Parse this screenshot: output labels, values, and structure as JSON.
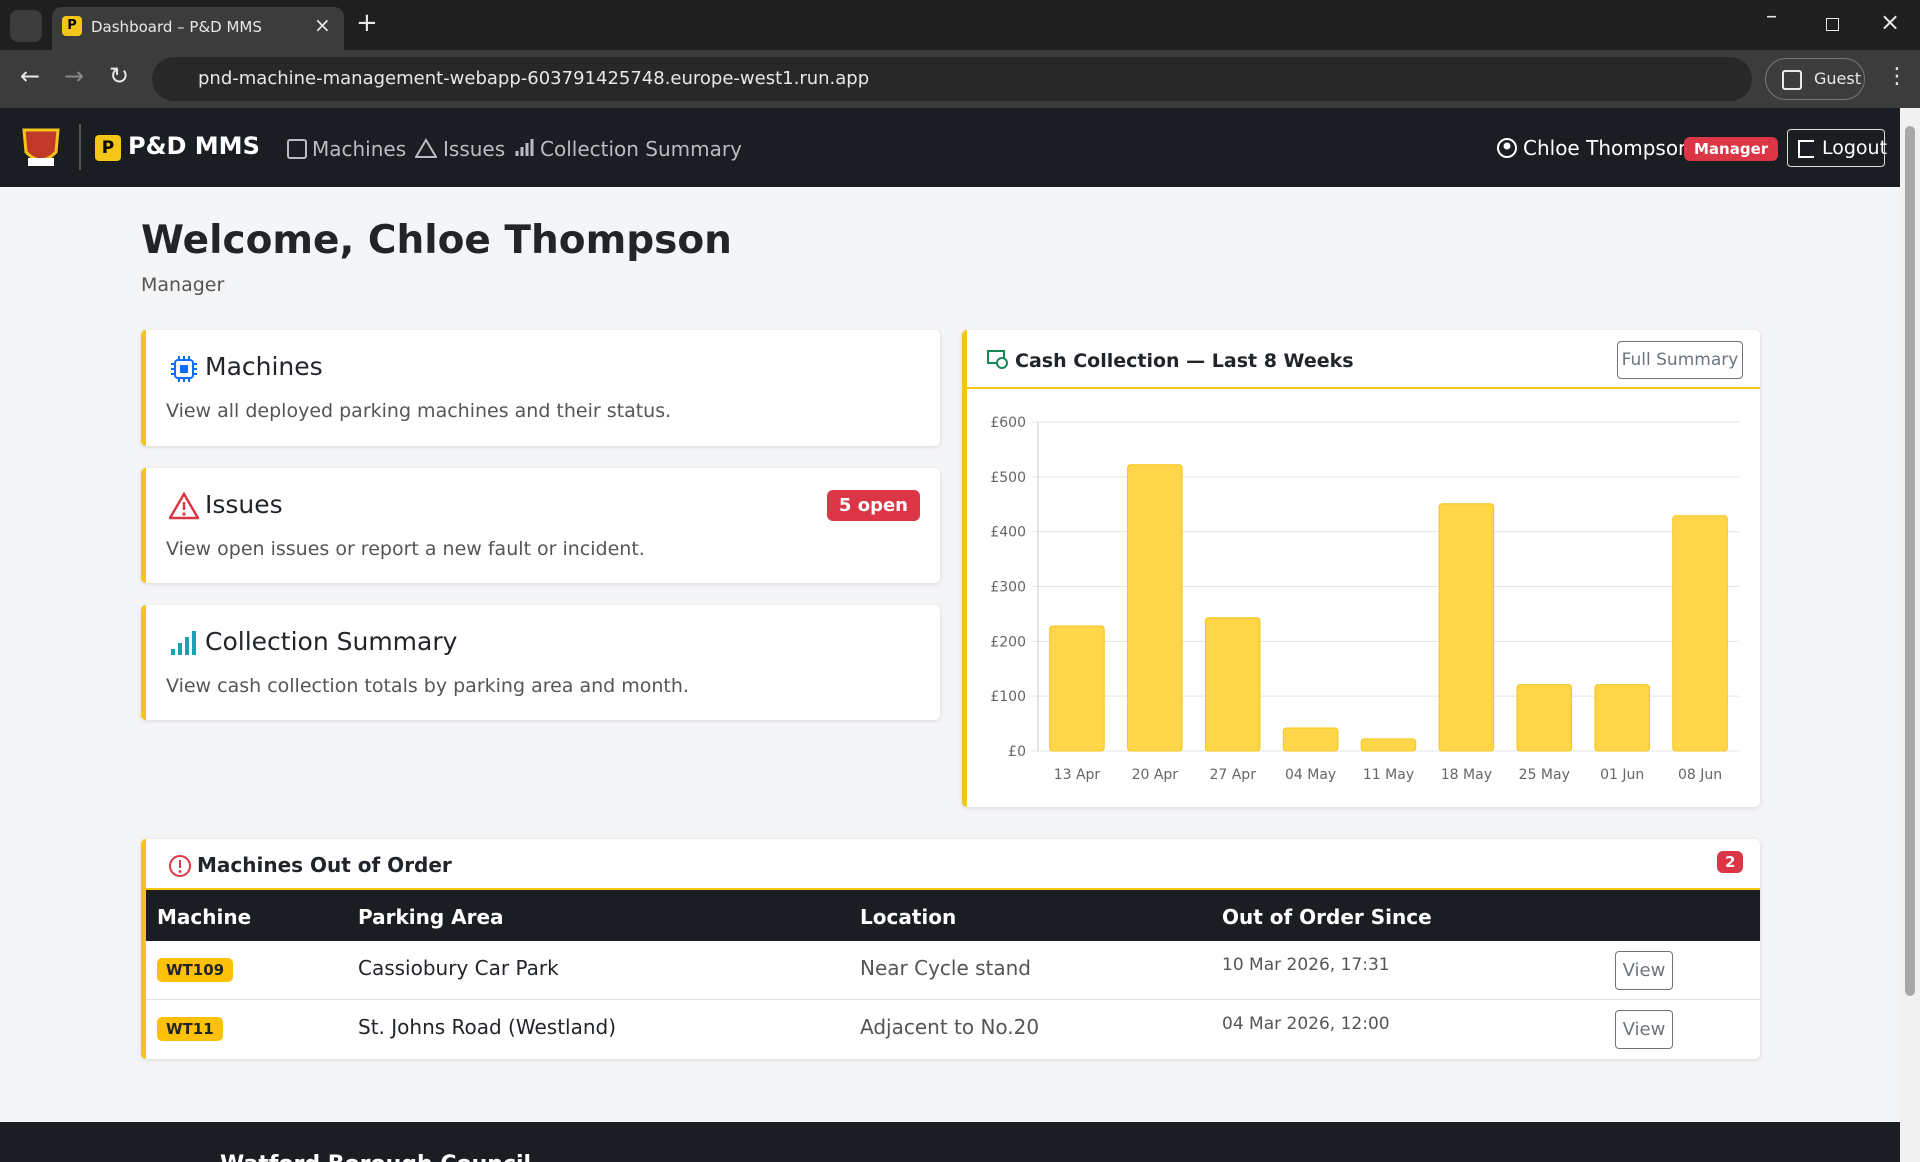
{
  "browser": {
    "tab_title": "Dashboard – P&D MMS",
    "tab_icon": "P",
    "url": "pnd-machine-management-webapp-603791425748.europe-west1.run.app",
    "profile": "Guest"
  },
  "nav": {
    "brand_icon": "P",
    "brand": "P&D MMS",
    "links": [
      "Machines",
      "Issues",
      "Collection Summary"
    ],
    "user": "Chloe Thompson",
    "role_badge": "Manager",
    "logout": "Logout"
  },
  "welcome": {
    "title": "Welcome, Chloe Thompson",
    "subtitle": "Manager"
  },
  "cards": [
    {
      "title": "Machines",
      "text": "View all deployed parking machines and their status."
    },
    {
      "title": "Issues",
      "text": "View open issues or report a new fault or incident.",
      "badge": "5 open"
    },
    {
      "title": "Collection Summary",
      "text": "View cash collection totals by parking area and month."
    }
  ],
  "chart_panel": {
    "button": "Full Summary"
  },
  "chart_data": {
    "type": "bar",
    "title": "Cash Collection — Last 8 Weeks",
    "categories": [
      "13 Apr",
      "20 Apr",
      "27 Apr",
      "04 May",
      "11 May",
      "18 May",
      "25 May",
      "01 Jun",
      "08 Jun"
    ],
    "values": [
      228,
      522,
      243,
      42,
      22,
      451,
      121,
      121,
      429
    ],
    "color": "#ffd54a",
    "ylim": [
      0,
      600
    ],
    "yticks": [
      {
        "value": 0,
        "label": "£0"
      },
      {
        "value": 100,
        "label": "£100"
      },
      {
        "value": 200,
        "label": "£200"
      },
      {
        "value": 300,
        "label": "£300"
      },
      {
        "value": 400,
        "label": "£400"
      },
      {
        "value": 500,
        "label": "£500"
      },
      {
        "value": 600,
        "label": "£600"
      }
    ],
    "grid": true
  },
  "out_of_order": {
    "title": "Machines Out of Order",
    "count": 2,
    "columns": [
      "Machine",
      "Parking Area",
      "Location",
      "Out of Order Since"
    ],
    "rows": [
      [
        "WT109",
        "Cassiobury Car Park",
        "Near Cycle stand",
        "10 Mar 2026, 17:31",
        "View"
      ],
      [
        "WT11",
        "St. Johns Road (Westland)",
        "Adjacent to No.20",
        "04 Mar 2026, 12:00",
        "View"
      ]
    ]
  },
  "footer": {
    "text": "Watford Borough Council"
  }
}
